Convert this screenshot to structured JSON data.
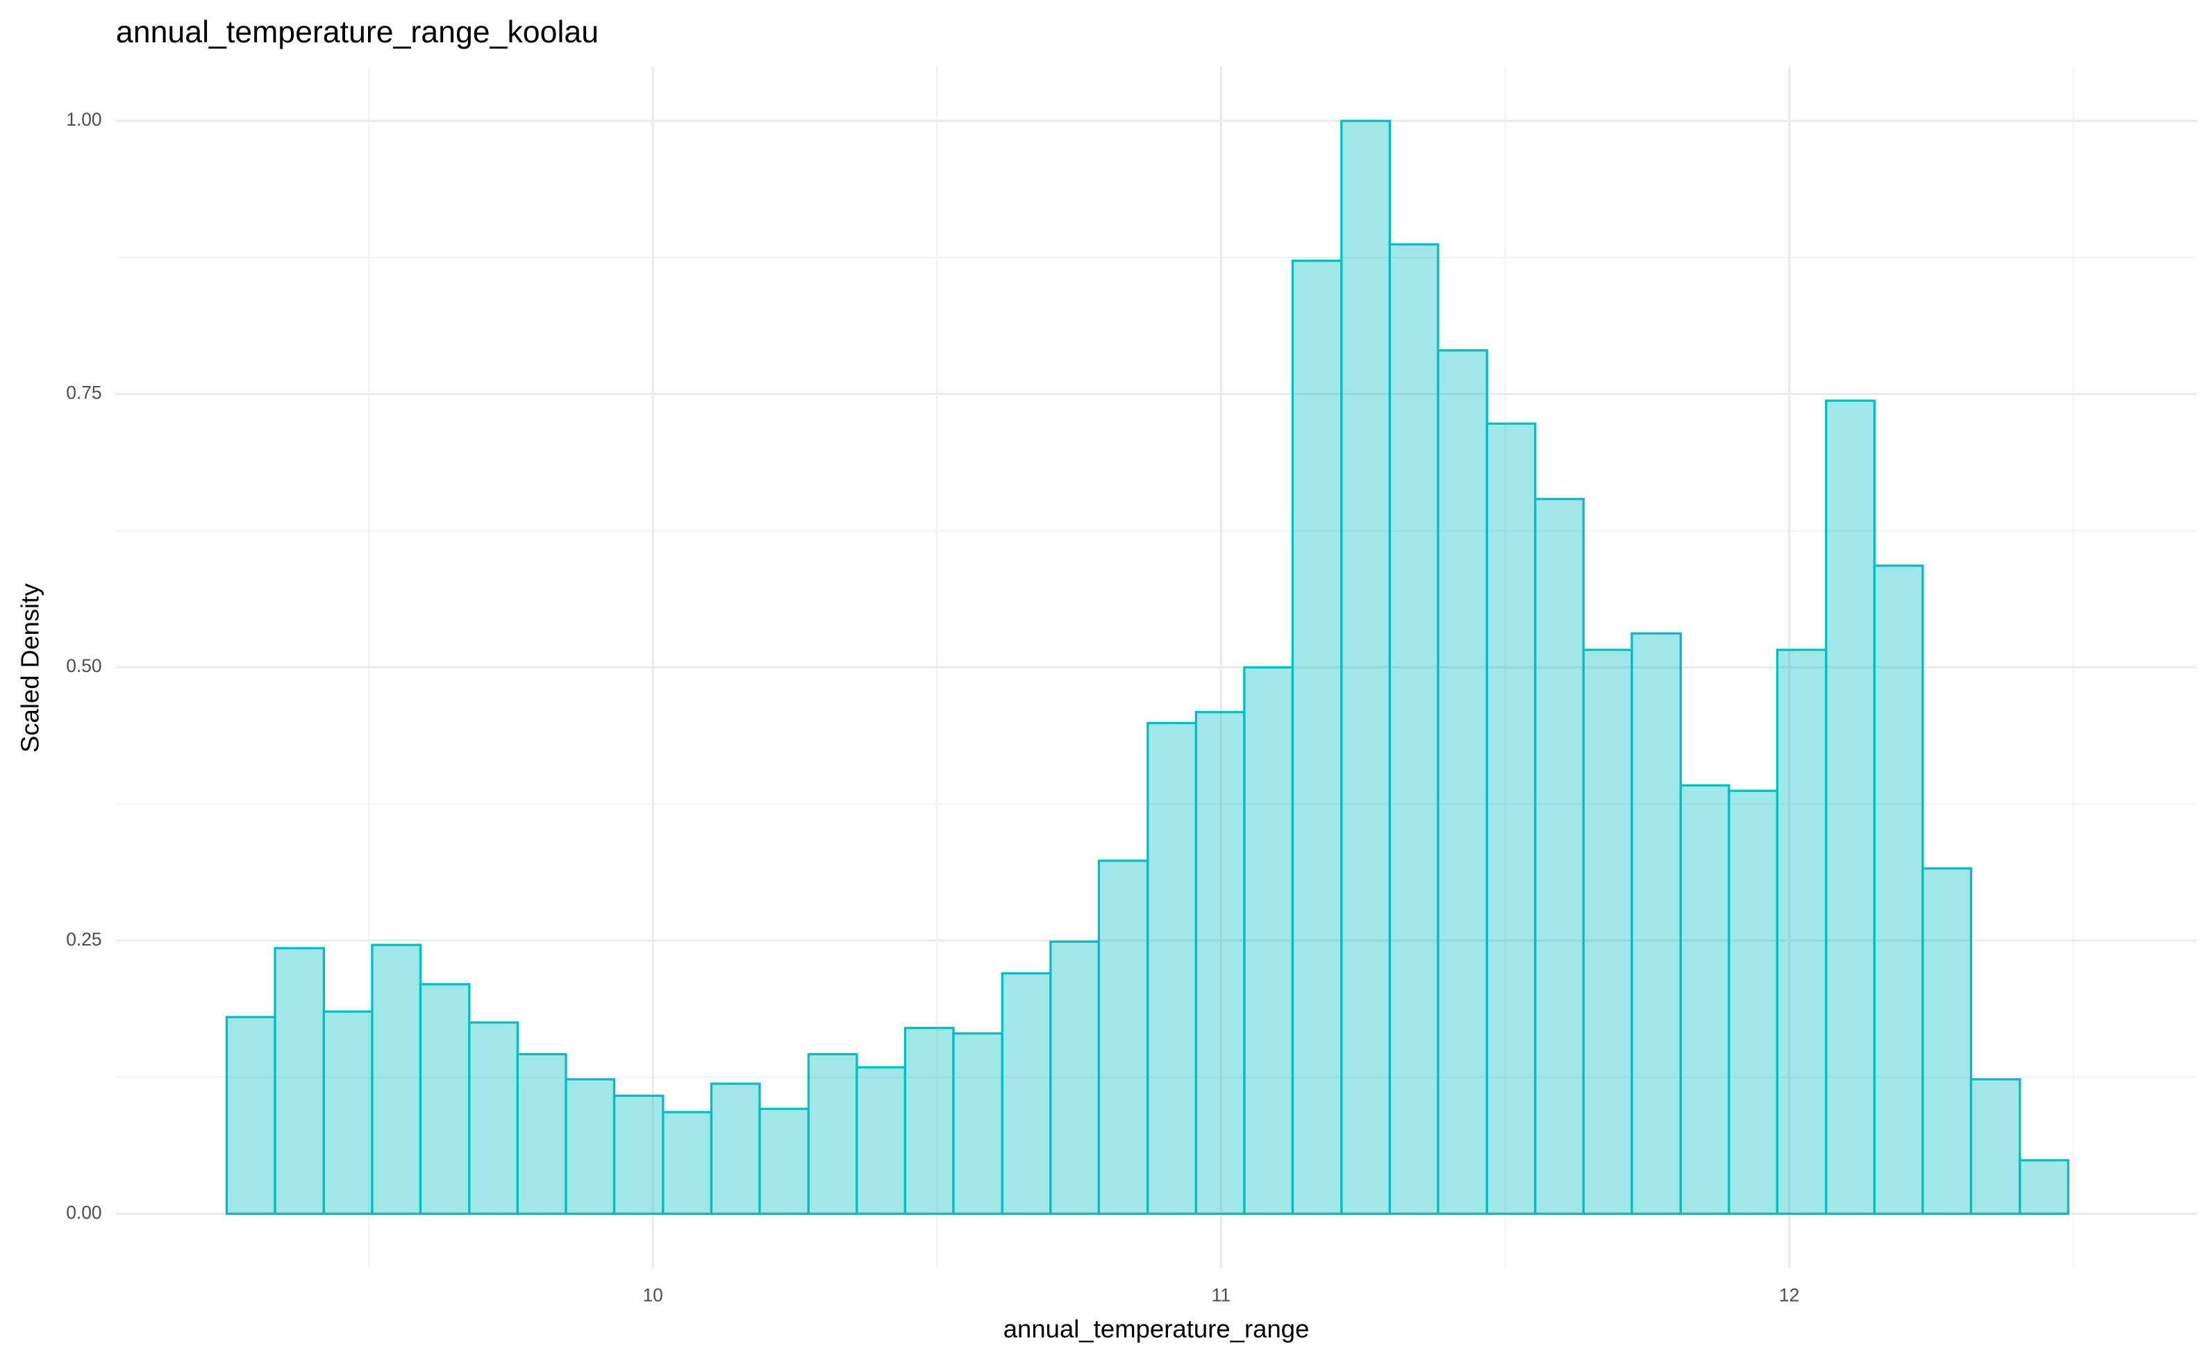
{
  "chart_data": {
    "type": "histogram",
    "title": "annual_temperature_range_koolau",
    "x_label": "annual_temperature_range",
    "y_label": "Scaled Density",
    "bins": [
      9.25,
      9.335,
      9.421,
      9.506,
      9.591,
      9.677,
      9.762,
      9.847,
      9.932,
      10.018,
      10.103,
      10.188,
      10.274,
      10.359,
      10.444,
      10.529,
      10.615,
      10.7,
      10.785,
      10.871,
      10.956,
      11.041,
      11.126,
      11.212,
      11.297,
      11.382,
      11.468,
      11.553,
      11.638,
      11.723,
      11.809,
      11.894,
      11.979,
      12.065,
      12.15,
      12.235,
      12.32,
      12.406,
      12.491
    ],
    "values": [
      0.18,
      0.243,
      0.185,
      0.246,
      0.21,
      0.175,
      0.146,
      0.123,
      0.108,
      0.093,
      0.119,
      0.096,
      0.146,
      0.134,
      0.17,
      0.165,
      0.22,
      0.249,
      0.323,
      0.449,
      0.459,
      0.5,
      0.872,
      1.0,
      0.887,
      0.79,
      0.723,
      0.654,
      0.516,
      0.531,
      0.392,
      0.387,
      0.516,
      0.744,
      0.593,
      0.316,
      0.123,
      0.049
    ],
    "color": "#00bfc4",
    "xlim": [
      9.055,
      12.717
    ],
    "xticks": [
      10,
      11,
      12
    ],
    "ylim": [
      -0.05,
      1.05
    ],
    "yticks": [
      {
        "value": 0,
        "label": "0.00"
      },
      {
        "value": 0.25,
        "label": "0.25"
      },
      {
        "value": 0.5,
        "label": "0.50"
      },
      {
        "value": 0.75,
        "label": "0.75"
      },
      {
        "value": 1,
        "label": "1.00"
      }
    ],
    "grid": true
  }
}
